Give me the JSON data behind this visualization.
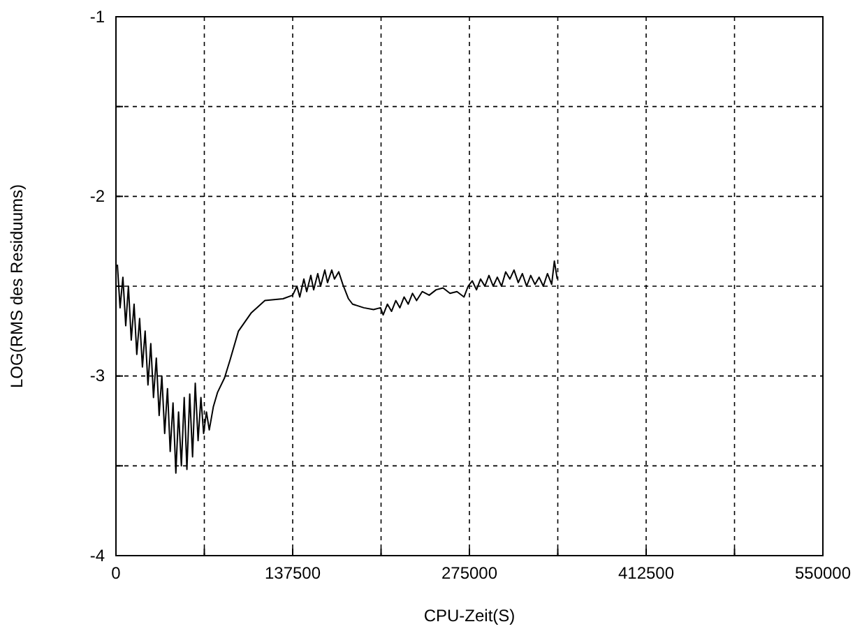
{
  "chart_data": {
    "type": "line",
    "xlabel": "CPU-Zeit(S)",
    "ylabel": "LOG(RMS des Residuums)",
    "xlim": [
      0,
      550000
    ],
    "ylim": [
      -4,
      -1
    ],
    "xticks": [
      0,
      {
        "value": 68750,
        "label": null
      },
      137500,
      {
        "value": 206250,
        "label": null
      },
      275000,
      {
        "value": 343750,
        "label": null
      },
      412500,
      {
        "value": 481250,
        "label": null
      },
      550000
    ],
    "yticks": [
      -4,
      {
        "value": -3.5,
        "label": null
      },
      -3,
      {
        "value": -2.5,
        "label": null
      },
      -2,
      {
        "value": -1.5,
        "label": null
      },
      -1
    ],
    "grid": true,
    "series": [
      {
        "color": "#000000",
        "x": [
          1100,
          3200,
          5400,
          7600,
          9700,
          11900,
          14100,
          16200,
          18400,
          20600,
          22700,
          24900,
          27100,
          29200,
          31400,
          33600,
          35700,
          37900,
          40100,
          42200,
          44400,
          46600,
          48700,
          50900,
          53100,
          55200,
          57400,
          59600,
          61700,
          63900,
          66100,
          68200,
          70400,
          72600,
          75800,
          79100,
          84500,
          88800,
          95300,
          105100,
          115900,
          130000,
          137500,
          140800,
          143000,
          146200,
          148400,
          151600,
          153800,
          157000,
          159200,
          162500,
          164600,
          167900,
          170000,
          173300,
          176500,
          180900,
          184100,
          192800,
          200400,
          205800,
          207900,
          211200,
          214400,
          217700,
          220900,
          224200,
          227400,
          230700,
          233900,
          238300,
          243700,
          249100,
          254500,
          259900,
          265300,
          270800,
          274000,
          277200,
          280500,
          283700,
          287000,
          290200,
          293500,
          296700,
          300000,
          303200,
          306500,
          309700,
          313000,
          316200,
          319500,
          322700,
          326000,
          329200,
          332500,
          335700,
          339000,
          341100,
          343300
        ],
        "values": [
          -2.38,
          -2.62,
          -2.45,
          -2.72,
          -2.5,
          -2.8,
          -2.6,
          -2.88,
          -2.68,
          -2.95,
          -2.75,
          -3.05,
          -2.82,
          -3.12,
          -2.9,
          -3.22,
          -3.0,
          -3.32,
          -3.07,
          -3.42,
          -3.15,
          -3.54,
          -3.2,
          -3.5,
          -3.12,
          -3.52,
          -3.1,
          -3.45,
          -3.04,
          -3.36,
          -3.12,
          -3.32,
          -3.2,
          -3.3,
          -3.17,
          -3.09,
          -3.01,
          -2.91,
          -2.75,
          -2.65,
          -2.58,
          -2.57,
          -2.55,
          -2.5,
          -2.56,
          -2.46,
          -2.53,
          -2.44,
          -2.52,
          -2.43,
          -2.5,
          -2.41,
          -2.48,
          -2.41,
          -2.46,
          -2.42,
          -2.49,
          -2.57,
          -2.6,
          -2.62,
          -2.63,
          -2.62,
          -2.66,
          -2.6,
          -2.64,
          -2.58,
          -2.62,
          -2.56,
          -2.6,
          -2.54,
          -2.58,
          -2.53,
          -2.55,
          -2.52,
          -2.51,
          -2.54,
          -2.53,
          -2.56,
          -2.5,
          -2.47,
          -2.52,
          -2.46,
          -2.5,
          -2.44,
          -2.5,
          -2.45,
          -2.5,
          -2.42,
          -2.46,
          -2.41,
          -2.48,
          -2.43,
          -2.5,
          -2.44,
          -2.49,
          -2.45,
          -2.5,
          -2.43,
          -2.49,
          -2.36,
          -2.46
        ]
      }
    ]
  }
}
